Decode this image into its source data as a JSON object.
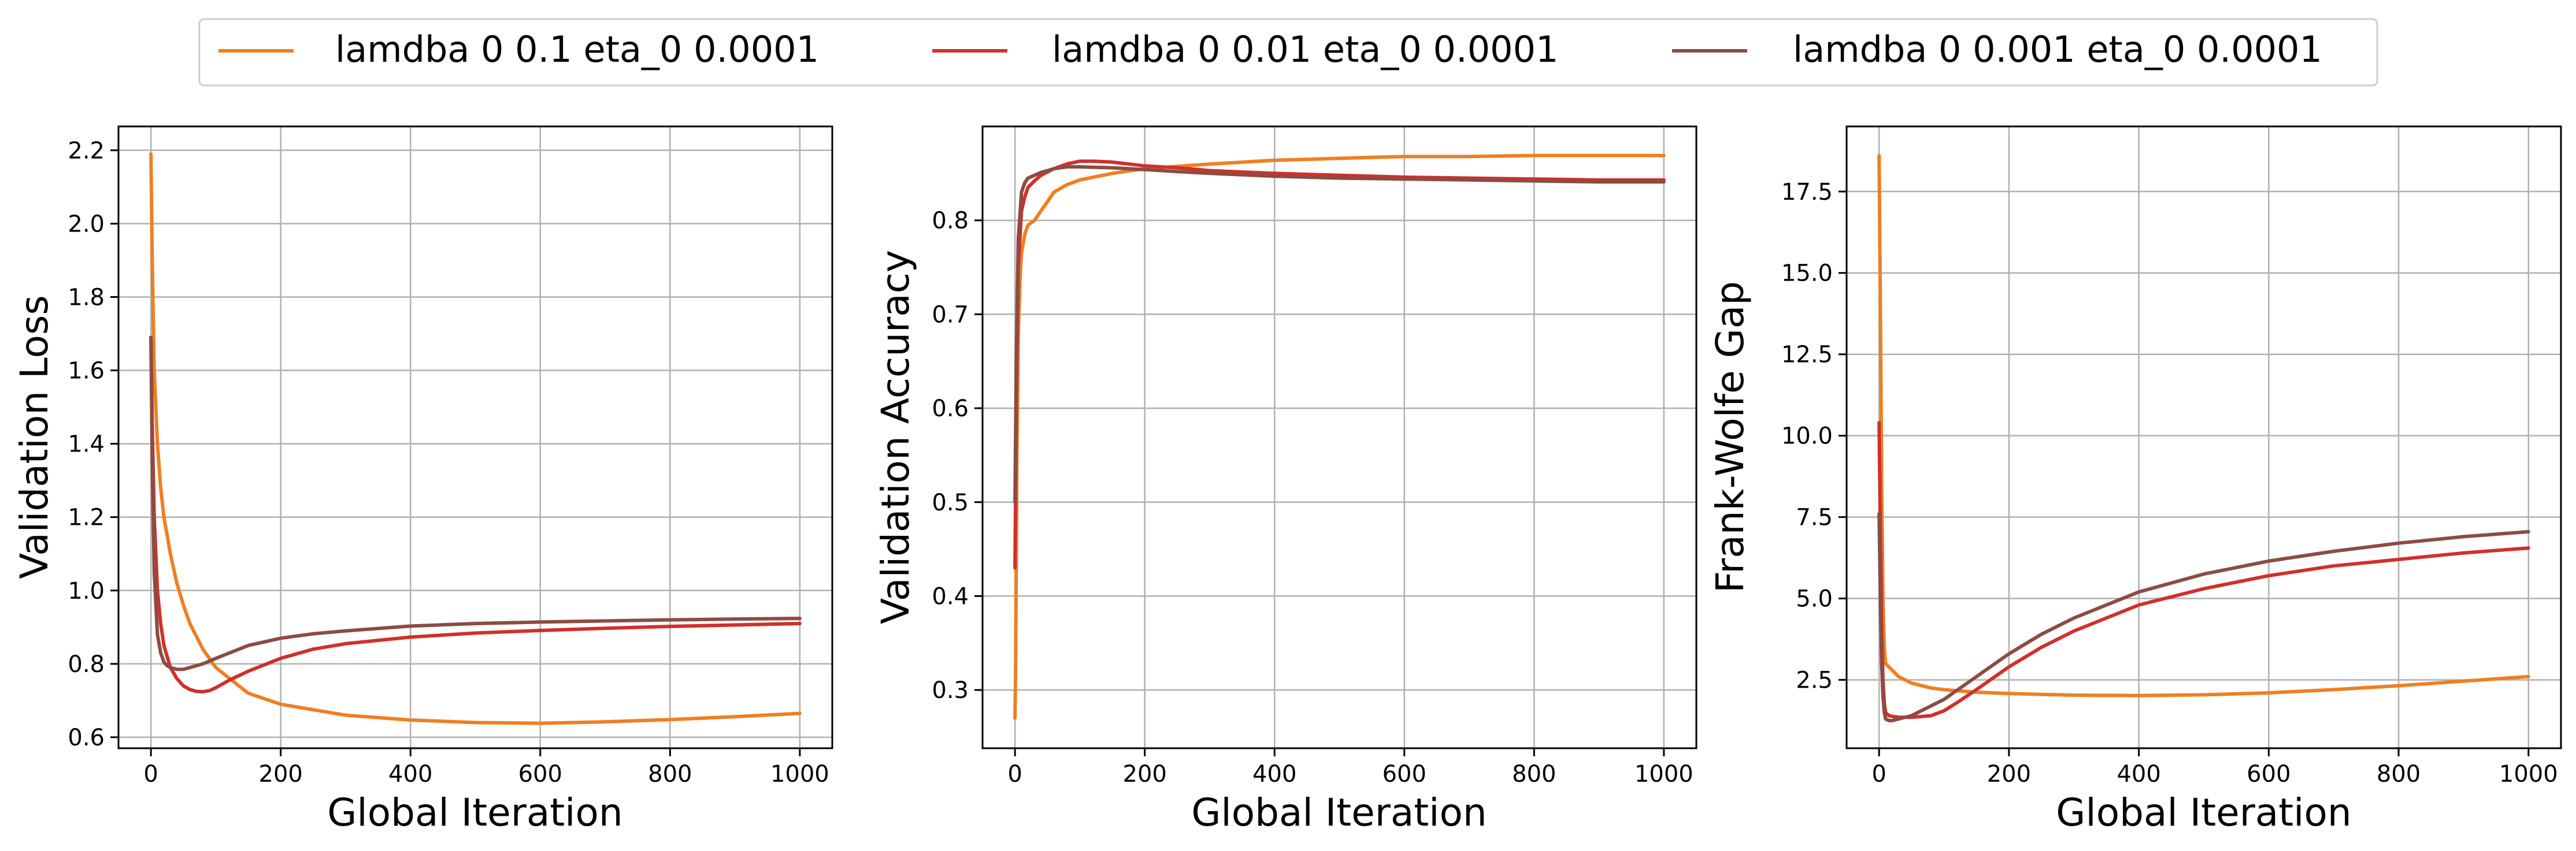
{
  "legend": {
    "placement": "top-center",
    "entries": [
      {
        "label": "lamdba 0 0.1 eta_0 0.0001",
        "color": "#ef7f22"
      },
      {
        "label": "lamdba 0 0.01 eta_0 0.0001",
        "color": "#d0302b"
      },
      {
        "label": "lamdba 0 0.001 eta_0 0.0001",
        "color": "#8b4c43"
      }
    ]
  },
  "chart_data": [
    {
      "type": "line",
      "title": "",
      "xlabel": "Global Iteration",
      "ylabel": "Validation Loss",
      "xlim": [
        -50,
        1050
      ],
      "ylim": [
        0.57,
        2.265
      ],
      "xticks": [
        0,
        200,
        400,
        600,
        800,
        1000
      ],
      "yticks": [
        0.6,
        0.8,
        1.0,
        1.2,
        1.4,
        1.6,
        1.8,
        2.0,
        2.2
      ],
      "ytick_labels": [
        "0.6",
        "0.8",
        "1.0",
        "1.2",
        "1.4",
        "1.6",
        "1.8",
        "2.0",
        "2.2"
      ],
      "grid": true,
      "series": [
        {
          "name": "lamdba 0 0.1 eta_0 0.0001",
          "color": "#ef7f22",
          "x": [
            0,
            2,
            5,
            10,
            15,
            20,
            30,
            40,
            50,
            60,
            80,
            100,
            150,
            200,
            300,
            400,
            500,
            600,
            700,
            800,
            900,
            1000
          ],
          "y": [
            2.19,
            1.9,
            1.6,
            1.4,
            1.28,
            1.2,
            1.1,
            1.02,
            0.96,
            0.91,
            0.84,
            0.79,
            0.72,
            0.69,
            0.66,
            0.647,
            0.64,
            0.638,
            0.642,
            0.648,
            0.656,
            0.665
          ]
        },
        {
          "name": "lamdba 0 0.01 eta_0 0.0001",
          "color": "#d0302b",
          "x": [
            0,
            2,
            5,
            10,
            15,
            20,
            30,
            40,
            50,
            60,
            70,
            80,
            90,
            100,
            120,
            150,
            200,
            250,
            300,
            400,
            500,
            600,
            700,
            800,
            900,
            1000
          ],
          "y": [
            1.69,
            1.45,
            1.2,
            1.0,
            0.91,
            0.85,
            0.79,
            0.76,
            0.74,
            0.73,
            0.725,
            0.724,
            0.727,
            0.735,
            0.755,
            0.78,
            0.815,
            0.84,
            0.855,
            0.873,
            0.884,
            0.891,
            0.897,
            0.902,
            0.906,
            0.91
          ]
        },
        {
          "name": "lamdba 0 0.001 eta_0 0.0001",
          "color": "#8b4c43",
          "x": [
            0,
            2,
            5,
            10,
            15,
            20,
            25,
            30,
            40,
            50,
            60,
            80,
            100,
            150,
            200,
            250,
            300,
            400,
            500,
            600,
            700,
            800,
            900,
            1000
          ],
          "y": [
            1.69,
            1.35,
            1.05,
            0.88,
            0.83,
            0.805,
            0.795,
            0.79,
            0.785,
            0.785,
            0.79,
            0.8,
            0.815,
            0.85,
            0.87,
            0.882,
            0.89,
            0.903,
            0.91,
            0.914,
            0.917,
            0.92,
            0.922,
            0.924
          ]
        }
      ]
    },
    {
      "type": "line",
      "title": "",
      "xlabel": "Global Iteration",
      "ylabel": "Validation Accuracy",
      "xlim": [
        -50,
        1050
      ],
      "ylim": [
        0.238,
        0.9
      ],
      "xticks": [
        0,
        200,
        400,
        600,
        800,
        1000
      ],
      "yticks": [
        0.3,
        0.4,
        0.5,
        0.6,
        0.7,
        0.8
      ],
      "ytick_labels": [
        "0.3",
        "0.4",
        "0.5",
        "0.6",
        "0.7",
        "0.8"
      ],
      "grid": true,
      "series": [
        {
          "name": "lamdba 0 0.1 eta_0 0.0001",
          "color": "#ef7f22",
          "x": [
            0,
            1,
            3,
            5,
            8,
            10,
            15,
            20,
            30,
            40,
            50,
            60,
            80,
            100,
            150,
            200,
            300,
            400,
            500,
            600,
            700,
            800,
            900,
            1000
          ],
          "y": [
            0.27,
            0.33,
            0.55,
            0.68,
            0.74,
            0.765,
            0.785,
            0.795,
            0.8,
            0.81,
            0.82,
            0.83,
            0.838,
            0.843,
            0.85,
            0.855,
            0.86,
            0.864,
            0.866,
            0.868,
            0.868,
            0.869,
            0.869,
            0.869
          ]
        },
        {
          "name": "lamdba 0 0.01 eta_0 0.0001",
          "color": "#d0302b",
          "x": [
            0,
            2,
            5,
            10,
            15,
            20,
            30,
            40,
            60,
            80,
            100,
            120,
            150,
            200,
            250,
            300,
            400,
            500,
            600,
            700,
            800,
            900,
            1000
          ],
          "y": [
            0.43,
            0.6,
            0.75,
            0.81,
            0.825,
            0.835,
            0.842,
            0.848,
            0.855,
            0.86,
            0.863,
            0.863,
            0.862,
            0.858,
            0.856,
            0.853,
            0.85,
            0.848,
            0.846,
            0.845,
            0.844,
            0.843,
            0.843
          ]
        },
        {
          "name": "lamdba 0 0.001 eta_0 0.0001",
          "color": "#8b4c43",
          "x": [
            0,
            2,
            5,
            10,
            15,
            20,
            30,
            40,
            60,
            80,
            100,
            150,
            200,
            250,
            300,
            400,
            500,
            600,
            700,
            800,
            900,
            1000
          ],
          "y": [
            0.5,
            0.65,
            0.78,
            0.83,
            0.84,
            0.845,
            0.848,
            0.851,
            0.855,
            0.857,
            0.857,
            0.856,
            0.854,
            0.852,
            0.85,
            0.847,
            0.845,
            0.844,
            0.843,
            0.842,
            0.841,
            0.841
          ]
        }
      ]
    },
    {
      "type": "line",
      "title": "",
      "xlabel": "Global Iteration",
      "ylabel": "Frank-Wolfe Gap",
      "xlim": [
        -50,
        1050
      ],
      "ylim": [
        0.4,
        19.5
      ],
      "xticks": [
        0,
        200,
        400,
        600,
        800,
        1000
      ],
      "yticks": [
        2.5,
        5.0,
        7.5,
        10.0,
        12.5,
        15.0,
        17.5
      ],
      "ytick_labels": [
        "2.5",
        "5.0",
        "7.5",
        "10.0",
        "12.5",
        "15.0",
        "17.5"
      ],
      "grid": true,
      "series": [
        {
          "name": "lamdba 0 0.1 eta_0 0.0001",
          "color": "#ef7f22",
          "x": [
            0,
            2,
            4,
            6,
            8,
            10,
            15,
            20,
            30,
            50,
            80,
            100,
            150,
            200,
            300,
            400,
            500,
            600,
            700,
            800,
            900,
            1000
          ],
          "y": [
            18.6,
            14.0,
            8.5,
            5.0,
            3.5,
            3.0,
            2.9,
            2.8,
            2.6,
            2.4,
            2.25,
            2.2,
            2.12,
            2.08,
            2.03,
            2.02,
            2.04,
            2.1,
            2.2,
            2.32,
            2.46,
            2.6
          ]
        },
        {
          "name": "lamdba 0 0.01 eta_0 0.0001",
          "color": "#d0302b",
          "x": [
            0,
            2,
            4,
            6,
            8,
            10,
            15,
            20,
            30,
            50,
            80,
            100,
            120,
            150,
            200,
            250,
            300,
            400,
            500,
            600,
            700,
            800,
            900,
            1000
          ],
          "y": [
            10.4,
            7.0,
            4.0,
            2.5,
            1.8,
            1.5,
            1.4,
            1.38,
            1.35,
            1.35,
            1.4,
            1.55,
            1.8,
            2.2,
            2.9,
            3.5,
            4.0,
            4.8,
            5.3,
            5.7,
            6.0,
            6.2,
            6.4,
            6.55
          ]
        },
        {
          "name": "lamdba 0 0.001 eta_0 0.0001",
          "color": "#8b4c43",
          "x": [
            0,
            2,
            4,
            6,
            8,
            10,
            15,
            20,
            30,
            50,
            70,
            100,
            150,
            200,
            250,
            300,
            400,
            500,
            600,
            700,
            800,
            900,
            1000
          ],
          "y": [
            7.6,
            5.0,
            3.0,
            2.0,
            1.5,
            1.3,
            1.25,
            1.25,
            1.3,
            1.4,
            1.6,
            1.9,
            2.6,
            3.3,
            3.9,
            4.4,
            5.2,
            5.75,
            6.15,
            6.45,
            6.7,
            6.9,
            7.05
          ]
        }
      ]
    }
  ]
}
